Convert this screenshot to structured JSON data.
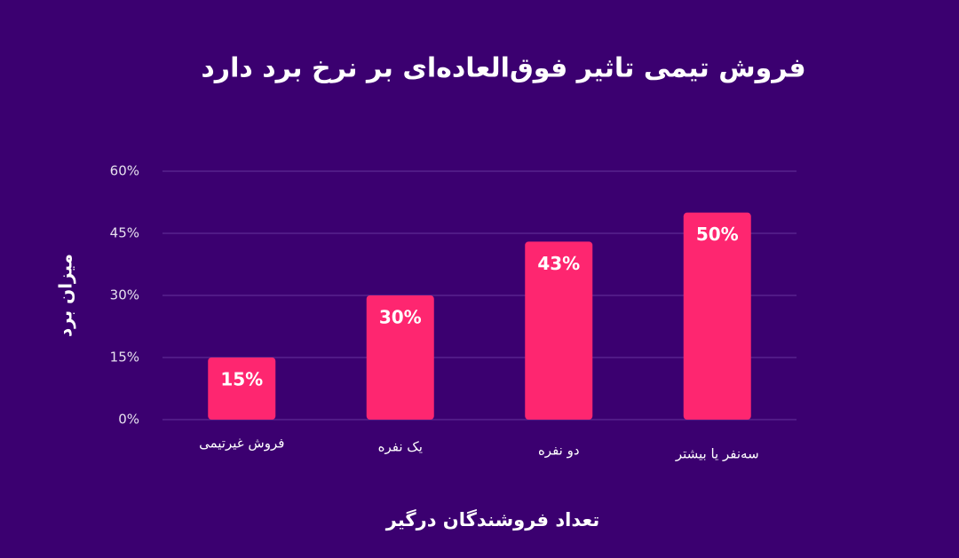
{
  "chart_data": {
    "type": "bar",
    "title": "فروش تیمی تاثیر فوق‌العاده‌ای بر نرخ برد دارد",
    "y_label": "میزان برد",
    "x_label": "تعداد فروشندگان درگیر",
    "categories": [
      "فروش غیرتیمی",
      "یک نفره",
      "دو نفره",
      "سه‌نفر یا بیشتر"
    ],
    "values": [
      15,
      30,
      43,
      50
    ],
    "value_labels": [
      "15%",
      "30%",
      "43%",
      "50%"
    ],
    "color": "#fe2670",
    "ylim": [
      0,
      60
    ],
    "yticks": [
      {
        "value": 0,
        "label": "0%"
      },
      {
        "value": 15,
        "label": "15%"
      },
      {
        "value": 30,
        "label": "30%"
      },
      {
        "value": 45,
        "label": "45%"
      },
      {
        "value": 60,
        "label": "60%"
      }
    ],
    "grid": true
  }
}
